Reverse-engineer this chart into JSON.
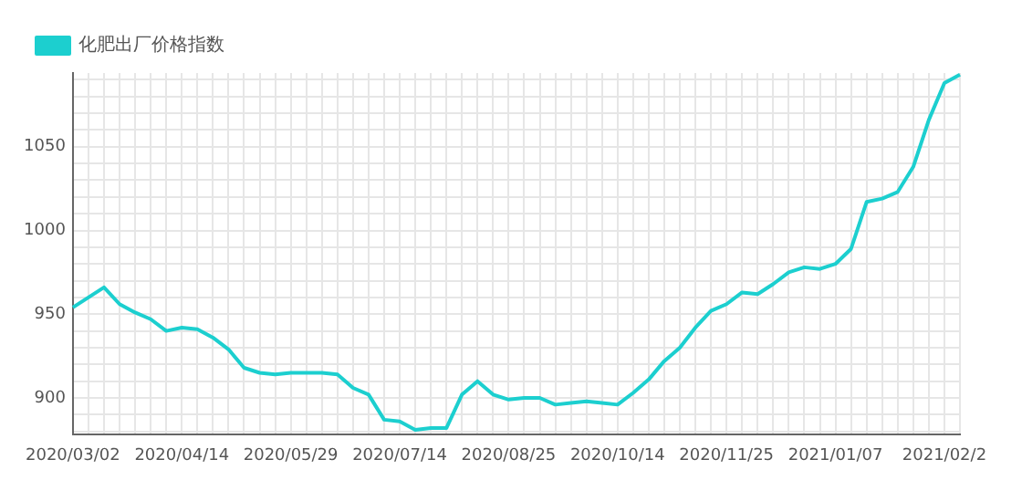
{
  "chart_data": {
    "type": "line",
    "categories": [
      "2020/03/02",
      null,
      null,
      null,
      null,
      null,
      null,
      "2020/04/14",
      null,
      null,
      null,
      null,
      null,
      null,
      "2020/05/29",
      null,
      null,
      null,
      null,
      null,
      null,
      "2020/07/14",
      null,
      null,
      null,
      null,
      null,
      null,
      "2020/08/25",
      null,
      null,
      null,
      null,
      null,
      null,
      "2020/10/14",
      null,
      null,
      null,
      null,
      null,
      null,
      "2020/11/25",
      null,
      null,
      null,
      null,
      null,
      null,
      "2021/01/07",
      null,
      null,
      null,
      null,
      null,
      null,
      "2021/02/2",
      null
    ],
    "series": [
      {
        "name": "化肥出厂价格指数",
        "color": "#1ccfcf",
        "values": [
          954,
          960,
          966,
          956,
          951,
          947,
          940,
          942,
          941,
          936,
          929,
          918,
          915,
          914,
          915,
          915,
          915,
          914,
          906,
          902,
          887,
          886,
          881,
          882,
          882,
          902,
          910,
          902,
          899,
          900,
          900,
          896,
          897,
          898,
          897,
          896,
          903,
          911,
          922,
          930,
          942,
          952,
          956,
          963,
          962,
          968,
          975,
          978,
          977,
          980,
          989,
          1017,
          1019,
          1023,
          1038,
          1066,
          1088,
          1093
        ]
      }
    ],
    "ylim": [
      878,
      1094
    ],
    "yticks": [
      {
        "value": 880,
        "label": null
      },
      {
        "value": 890,
        "label": null
      },
      900,
      {
        "value": 910,
        "label": null
      },
      {
        "value": 920,
        "label": null
      },
      {
        "value": 930,
        "label": null
      },
      {
        "value": 940,
        "label": null
      },
      950,
      {
        "value": 960,
        "label": null
      },
      {
        "value": 970,
        "label": null
      },
      {
        "value": 980,
        "label": null
      },
      {
        "value": 990,
        "label": null
      },
      1000,
      {
        "value": 1010,
        "label": null
      },
      {
        "value": 1020,
        "label": null
      },
      {
        "value": 1030,
        "label": null
      },
      {
        "value": 1040,
        "label": null
      },
      1050,
      {
        "value": 1060,
        "label": null
      },
      {
        "value": 1070,
        "label": null
      },
      {
        "value": 1080,
        "label": null
      },
      {
        "value": 1090,
        "label": null
      }
    ],
    "grid": true,
    "legend": "top left",
    "marker": "none",
    "line_style": "solid"
  }
}
